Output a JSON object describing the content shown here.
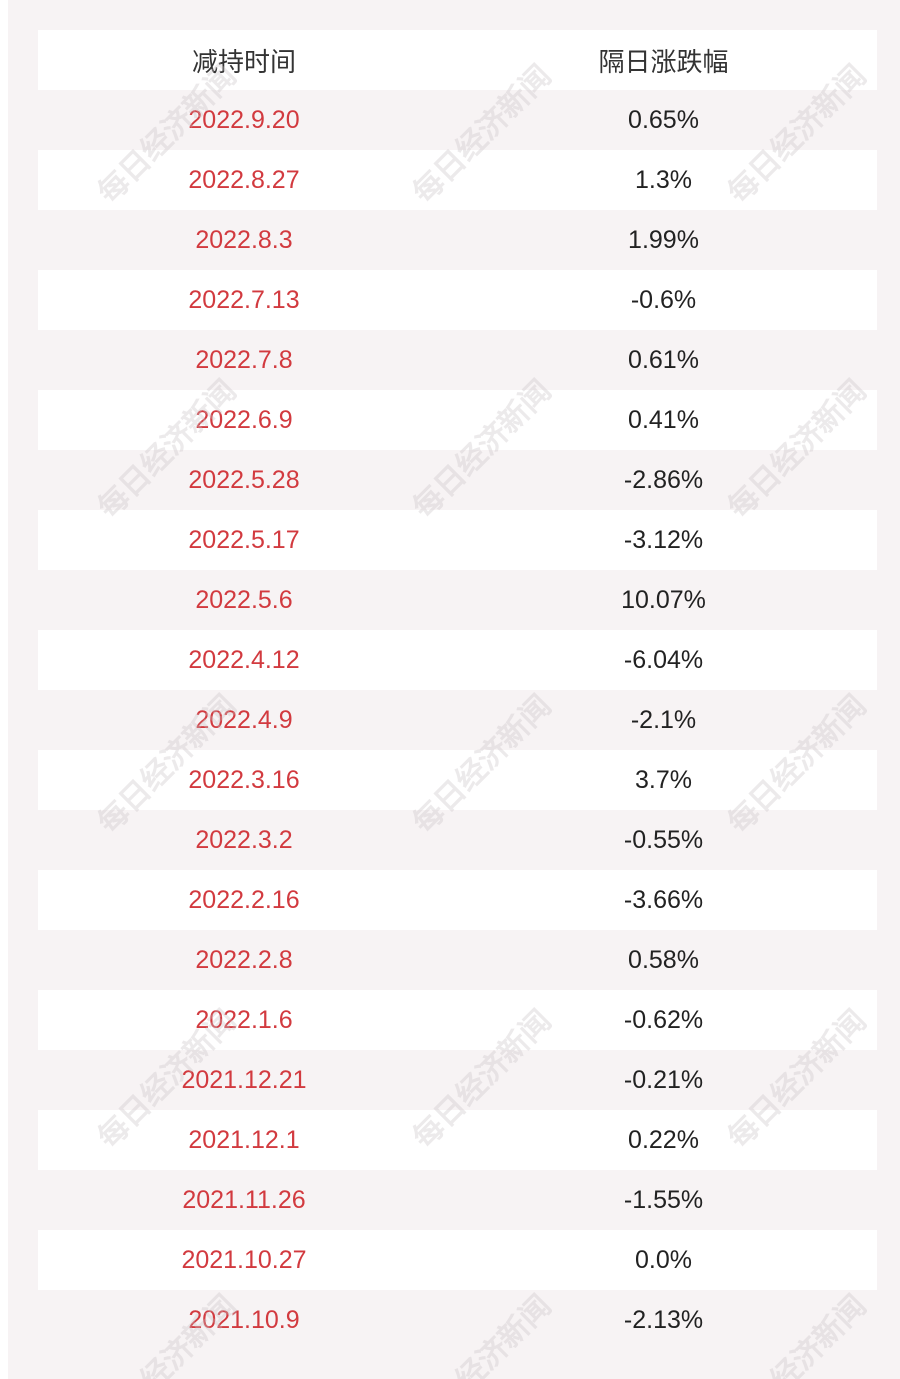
{
  "table": {
    "headers": [
      "减持时间",
      "隔日涨跌幅"
    ],
    "rows": [
      {
        "date": "2022.9.20",
        "change": "0.65%"
      },
      {
        "date": "2022.8.27",
        "change": "1.3%"
      },
      {
        "date": "2022.8.3",
        "change": "1.99%"
      },
      {
        "date": "2022.7.13",
        "change": "-0.6%"
      },
      {
        "date": "2022.7.8",
        "change": "0.61%"
      },
      {
        "date": "2022.6.9",
        "change": "0.41%"
      },
      {
        "date": "2022.5.28",
        "change": "-2.86%"
      },
      {
        "date": "2022.5.17",
        "change": "-3.12%"
      },
      {
        "date": "2022.5.6",
        "change": "10.07%"
      },
      {
        "date": "2022.4.12",
        "change": "-6.04%"
      },
      {
        "date": "2022.4.9",
        "change": "-2.1%"
      },
      {
        "date": "2022.3.16",
        "change": "3.7%"
      },
      {
        "date": "2022.3.2",
        "change": "-0.55%"
      },
      {
        "date": "2022.2.16",
        "change": "-3.66%"
      },
      {
        "date": "2022.2.8",
        "change": "0.58%"
      },
      {
        "date": "2022.1.6",
        "change": "-0.62%"
      },
      {
        "date": "2021.12.21",
        "change": "-0.21%"
      },
      {
        "date": "2021.12.1",
        "change": "0.22%"
      },
      {
        "date": "2021.11.26",
        "change": "-1.55%"
      },
      {
        "date": "2021.10.27",
        "change": "0.0%"
      },
      {
        "date": "2021.10.9",
        "change": "-2.13%"
      }
    ]
  },
  "watermark": "每日经济新闻",
  "colors": {
    "date_text": "#d23a3f",
    "value_text": "#222222",
    "header_text": "#333333",
    "panel_bg": "#f7f3f4",
    "row_bg": "#ffffff"
  }
}
